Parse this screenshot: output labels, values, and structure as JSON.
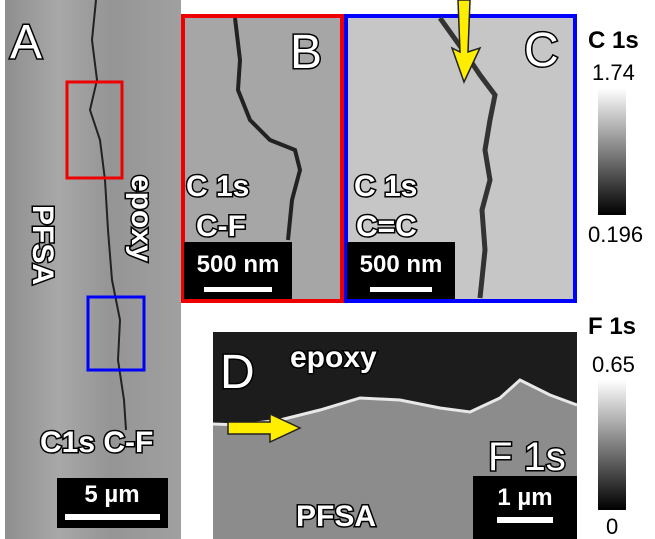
{
  "panels": [
    {
      "letter": "A",
      "labels": [
        "PFSA",
        "epoxy",
        "C1s C-F"
      ],
      "scale_bar": "5 µm"
    },
    {
      "letter": "B",
      "labels": [
        "C 1s",
        "C-F"
      ],
      "scale_bar": "500 nm"
    },
    {
      "letter": "C",
      "labels": [
        "C 1s",
        "C=C"
      ],
      "scale_bar": "500 nm"
    },
    {
      "letter": "D",
      "labels": [
        "epoxy",
        "PFSA",
        "F 1s"
      ],
      "scale_bar": "1 µm"
    }
  ],
  "colorbars": [
    {
      "title": "C 1s",
      "max": "1.74",
      "min": "0.196"
    },
    {
      "title": "F 1s",
      "max": "0.65",
      "min": "0"
    }
  ]
}
